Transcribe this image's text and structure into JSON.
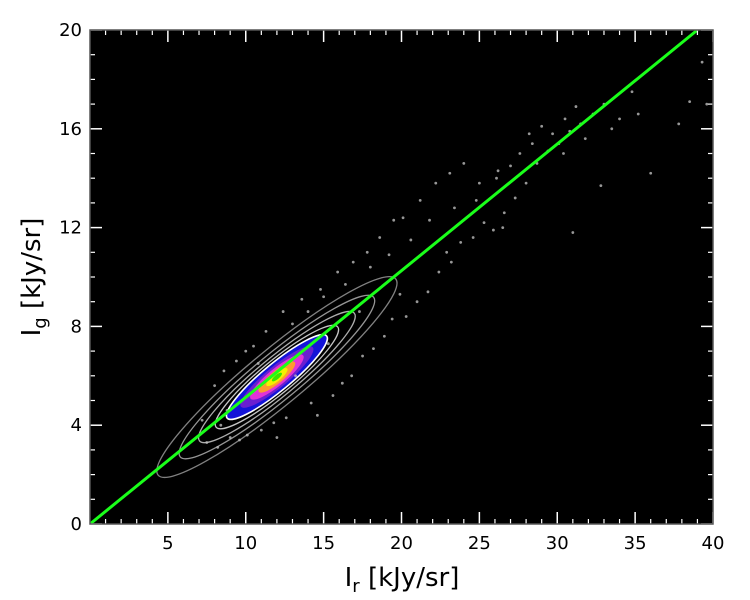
{
  "chart_data": {
    "type": "scatter",
    "title": "",
    "xlabel": {
      "main": "I",
      "sub": "r",
      "unit": " [kJy/sr]"
    },
    "ylabel": {
      "main": "I",
      "sub": "g",
      "unit": " [kJy/sr]"
    },
    "xlim": [
      0,
      40
    ],
    "ylim": [
      0,
      20
    ],
    "xticks": [
      5,
      10,
      15,
      20,
      25,
      30,
      35,
      40
    ],
    "yticks": [
      0,
      4,
      8,
      12,
      16,
      20
    ],
    "grid": false,
    "legend": "none",
    "background_color": "#000000",
    "density": {
      "center": [
        12.0,
        5.95
      ],
      "axis_angle_deg_data": 27.5,
      "levels": [
        {
          "name": "contour-white-outer",
          "color": "#8f8f8f",
          "semi_major": 8.6,
          "semi_minor": 0.75
        },
        {
          "name": "contour-white-2",
          "color": "#a6a6a6",
          "semi_major": 7.0,
          "semi_minor": 0.62
        },
        {
          "name": "contour-white-3",
          "color": "#c0c0c0",
          "semi_major": 5.6,
          "semi_minor": 0.52
        },
        {
          "name": "contour-white-4",
          "color": "#dcdcdc",
          "semi_major": 4.4,
          "semi_minor": 0.44
        },
        {
          "name": "density-blue",
          "color": "#1414d8",
          "semi_major": 3.6,
          "semi_minor": 0.37
        },
        {
          "name": "density-violet",
          "color": "#6a1fd0",
          "semi_major": 2.6,
          "semi_minor": 0.29
        },
        {
          "name": "density-magenta",
          "color": "#e233d6",
          "semi_major": 1.9,
          "semi_minor": 0.23
        },
        {
          "name": "density-orange",
          "color": "#ff9a2e",
          "semi_major": 1.3,
          "semi_minor": 0.17
        },
        {
          "name": "density-yellow",
          "color": "#f4f000",
          "semi_major": 0.75,
          "semi_minor": 0.11
        },
        {
          "name": "density-green",
          "color": "#39e600",
          "semi_major": 0.35,
          "semi_minor": 0.06
        }
      ]
    },
    "scatter_points": [
      [
        7.5,
        3.3
      ],
      [
        8.2,
        3.1
      ],
      [
        8.8,
        4.6
      ],
      [
        9.6,
        3.4
      ],
      [
        10.1,
        3.6
      ],
      [
        11.0,
        3.8
      ],
      [
        11.8,
        4.1
      ],
      [
        12.6,
        4.3
      ],
      [
        14.2,
        4.9
      ],
      [
        15.6,
        5.2
      ],
      [
        16.8,
        6.0
      ],
      [
        17.5,
        6.8
      ],
      [
        18.2,
        7.1
      ],
      [
        18.9,
        7.6
      ],
      [
        19.4,
        8.3
      ],
      [
        20.3,
        8.4
      ],
      [
        21.0,
        9.0
      ],
      [
        21.7,
        9.4
      ],
      [
        22.4,
        10.2
      ],
      [
        23.2,
        10.6
      ],
      [
        23.8,
        11.4
      ],
      [
        24.6,
        11.6
      ],
      [
        25.3,
        12.2
      ],
      [
        25.9,
        11.9
      ],
      [
        26.6,
        12.6
      ],
      [
        27.3,
        13.2
      ],
      [
        28.0,
        13.8
      ],
      [
        28.7,
        14.6
      ],
      [
        29.4,
        15.1
      ],
      [
        30.1,
        15.4
      ],
      [
        30.8,
        15.9
      ],
      [
        31.5,
        16.2
      ],
      [
        32.3,
        16.6
      ],
      [
        33.0,
        17.0
      ],
      [
        34.0,
        16.4
      ],
      [
        35.2,
        16.6
      ],
      [
        36.0,
        14.2
      ],
      [
        37.8,
        16.2
      ],
      [
        38.5,
        17.1
      ],
      [
        39.3,
        18.7
      ],
      [
        39.6,
        17.0
      ],
      [
        9.4,
        6.6
      ],
      [
        10.5,
        7.2
      ],
      [
        11.3,
        7.8
      ],
      [
        12.4,
        8.6
      ],
      [
        13.6,
        9.1
      ],
      [
        14.8,
        9.5
      ],
      [
        15.9,
        10.2
      ],
      [
        16.9,
        10.6
      ],
      [
        17.8,
        11.0
      ],
      [
        18.6,
        11.6
      ],
      [
        19.5,
        12.3
      ],
      [
        20.1,
        12.4
      ],
      [
        21.2,
        13.1
      ],
      [
        22.2,
        13.8
      ],
      [
        23.1,
        14.2
      ],
      [
        24.0,
        14.6
      ],
      [
        24.8,
        13.1
      ],
      [
        26.1,
        14.0
      ],
      [
        27.0,
        14.5
      ],
      [
        28.2,
        15.8
      ],
      [
        29.0,
        16.1
      ],
      [
        30.5,
        16.4
      ],
      [
        31.2,
        16.9
      ],
      [
        32.8,
        13.7
      ],
      [
        31.0,
        11.8
      ],
      [
        26.5,
        12.0
      ],
      [
        22.9,
        11.0
      ],
      [
        19.9,
        9.3
      ],
      [
        17.3,
        8.6
      ],
      [
        15.3,
        7.3
      ],
      [
        13.2,
        6.0
      ],
      [
        16.2,
        5.7
      ],
      [
        14.6,
        4.4
      ],
      [
        12.0,
        3.5
      ],
      [
        9.0,
        3.5
      ],
      [
        8.4,
        4.0
      ],
      [
        7.2,
        4.2
      ],
      [
        8.0,
        5.6
      ],
      [
        8.6,
        6.2
      ],
      [
        10.0,
        7.0
      ],
      [
        10.8,
        6.5
      ],
      [
        13.0,
        8.1
      ],
      [
        14.0,
        8.6
      ],
      [
        15.0,
        9.2
      ],
      [
        16.4,
        9.7
      ],
      [
        18.0,
        10.4
      ],
      [
        19.2,
        10.9
      ],
      [
        20.6,
        11.5
      ],
      [
        21.8,
        12.3
      ],
      [
        23.4,
        12.8
      ],
      [
        25.0,
        13.8
      ],
      [
        26.2,
        14.3
      ],
      [
        27.6,
        15.0
      ],
      [
        28.4,
        15.4
      ],
      [
        29.7,
        15.8
      ],
      [
        30.4,
        15.0
      ],
      [
        31.8,
        15.6
      ],
      [
        33.5,
        16.0
      ],
      [
        34.8,
        17.5
      ]
    ],
    "series": [
      {
        "kind": "fit-line",
        "color": "#1aff1a",
        "x": [
          0.0,
          39.0
        ],
        "y": [
          0.0,
          20.0
        ]
      }
    ]
  }
}
